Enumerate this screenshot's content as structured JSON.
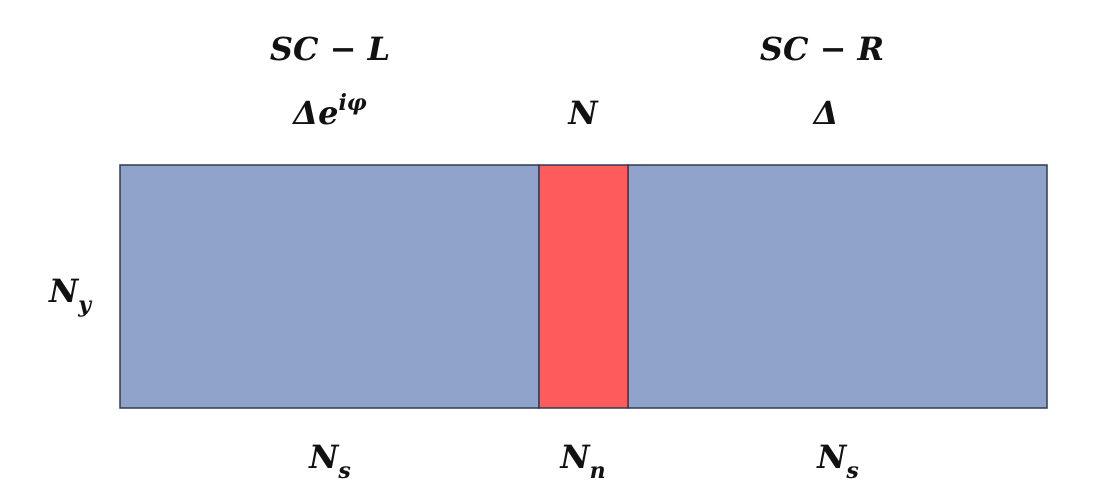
{
  "regions": [
    {
      "name": "SC − L",
      "gap": {
        "base": "Δe",
        "sup": "iφ"
      },
      "width": {
        "base": "N",
        "sub": "s"
      }
    },
    {
      "gap": "N",
      "width": {
        "base": "N",
        "sub": "n"
      }
    },
    {
      "name": "SC − R",
      "gap": "Δ",
      "width": {
        "base": "N",
        "sub": "s"
      }
    }
  ],
  "height": {
    "base": "N",
    "sub": "y"
  }
}
